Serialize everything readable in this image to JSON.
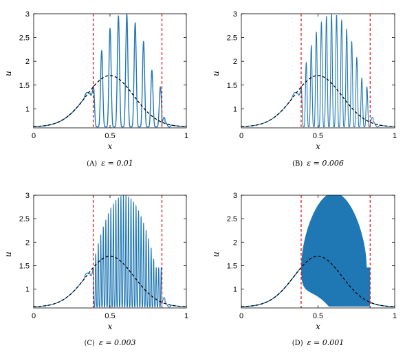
{
  "colors": {
    "oscillation": "#1f77b4",
    "mean": "#000000",
    "boundary": "#e8141c",
    "frame": "#000000"
  },
  "chart_data": [
    {
      "type": "line",
      "caption_label": "(A)",
      "caption_eq": "ε = 0.01",
      "epsilon": 0.01,
      "xlabel": "x",
      "ylabel": "u",
      "xlim": [
        0,
        1
      ],
      "ylim": [
        0.6,
        3
      ],
      "xticks": [
        "0",
        "0.5",
        "1"
      ],
      "yticks": [
        "1",
        "1.5",
        "2",
        "2.5",
        "3"
      ],
      "boundaries_x": [
        0.39,
        0.84
      ],
      "series": [
        {
          "style": "solid-blue",
          "peak_x": [
            0.4,
            0.46,
            0.52,
            0.58,
            0.63,
            0.68,
            0.73,
            0.78
          ],
          "peak_y": [
            1.9,
            2.75,
            3.0,
            2.85,
            2.6,
            2.3,
            2.0,
            1.7
          ],
          "trough_y": 0.62
        },
        {
          "style": "dashed-black",
          "description_y_max": 1.7,
          "description_x_peak": 0.5
        }
      ]
    },
    {
      "type": "line",
      "caption_label": "(B)",
      "caption_eq": "ε = 0.006",
      "epsilon": 0.006,
      "xlabel": "x",
      "ylabel": "u",
      "xlim": [
        0,
        1
      ],
      "ylim": [
        0.6,
        3
      ],
      "xticks": [
        "0",
        "0.5",
        "1"
      ],
      "yticks": [
        "1",
        "1.5",
        "2",
        "2.5",
        "3"
      ],
      "boundaries_x": [
        0.39,
        0.84
      ],
      "series": [
        {
          "style": "solid-blue",
          "peak_y_max": 3.0,
          "trough_y": 0.62
        },
        {
          "style": "dashed-black",
          "description_y_max": 1.7,
          "description_x_peak": 0.5
        }
      ]
    },
    {
      "type": "line",
      "caption_label": "(C)",
      "caption_eq": "ε = 0.003",
      "epsilon": 0.003,
      "xlabel": "x",
      "ylabel": "u",
      "xlim": [
        0,
        1
      ],
      "ylim": [
        0.6,
        3
      ],
      "xticks": [
        "0",
        "0.5",
        "1"
      ],
      "yticks": [
        "1",
        "1.5",
        "2",
        "2.5",
        "3"
      ],
      "boundaries_x": [
        0.39,
        0.84
      ],
      "series": [
        {
          "style": "solid-blue",
          "peak_y_max": 3.0,
          "trough_y": 0.62
        },
        {
          "style": "dashed-black",
          "description_y_max": 1.7,
          "description_x_peak": 0.5
        }
      ]
    },
    {
      "type": "area",
      "caption_label": "(D)",
      "caption_eq": "ε = 0.001",
      "epsilon": 0.001,
      "xlabel": "x",
      "ylabel": "u",
      "xlim": [
        0,
        1
      ],
      "ylim": [
        0.6,
        3
      ],
      "xticks": [
        "0",
        "0.5",
        "1"
      ],
      "yticks": [
        "1",
        "1.5",
        "2",
        "2.5",
        "3"
      ],
      "boundaries_x": [
        0.39,
        0.84
      ],
      "series": [
        {
          "style": "filled-blue",
          "peak_y_max": 3.0,
          "trough_y": 0.62
        },
        {
          "style": "dashed-black",
          "description_y_max": 1.7,
          "description_x_peak": 0.5
        }
      ]
    }
  ]
}
